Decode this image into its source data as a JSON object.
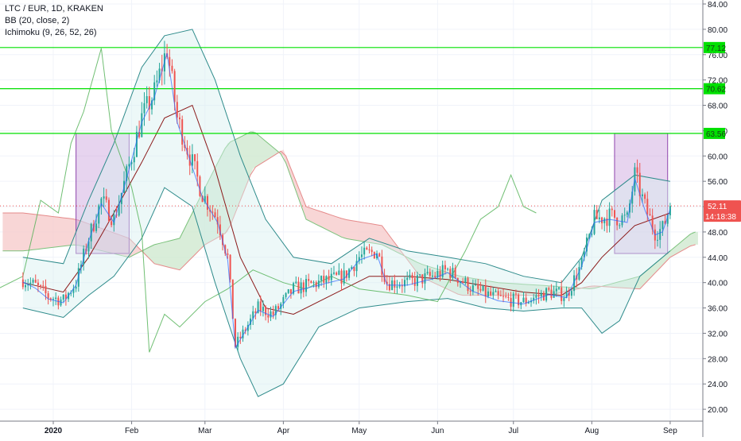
{
  "legend": {
    "symbol": "LTC / EUR, 1D, KRAKEN",
    "bb": "BB (20, close, 2)",
    "ichimoku": "Ichimoku (9, 26, 52, 26)"
  },
  "colors": {
    "up": "#26a69a",
    "down": "#ef5350",
    "level_line": "#00e000",
    "level_label_bg": "#00e000",
    "current_bg": "#ef5350",
    "bb_band": "#2e8b8b",
    "bb_mid": "#8b1a1a",
    "box_fill": "#c9a0dc",
    "box_stroke": "#8e44ad",
    "cloud_bull": "#cfe9cf",
    "cloud_bear": "#f6cccc",
    "lagging": "#4caf50",
    "axis_text": "#131722",
    "grid": "#f0f3fa"
  },
  "chart_data": {
    "type": "candlestick",
    "x_labels": [
      "2020",
      "Feb",
      "Mar",
      "Apr",
      "May",
      "Jun",
      "Jul",
      "Aug",
      "Sep"
    ],
    "y_ticks": [
      "84.00",
      "80.00",
      "76.00",
      "72.00",
      "68.00",
      "64.00",
      "60.00",
      "56.00",
      "52.00",
      "48.00",
      "44.00",
      "40.00",
      "36.00",
      "32.00",
      "28.00",
      "24.00",
      "20.00"
    ],
    "ylim": [
      18.5,
      85.5
    ],
    "levels": [
      {
        "value": 77.12,
        "label": "77.12"
      },
      {
        "value": 70.62,
        "label": "70.62"
      },
      {
        "value": 63.56,
        "label": "63.56"
      }
    ],
    "current_price": {
      "value": 52.11,
      "label": "52.11",
      "countdown": "14:18:38"
    },
    "boxes": [
      {
        "from": "2020-01-10",
        "to": "2020-01-31",
        "high": 63.56,
        "low": 44.6
      },
      {
        "from": "2020-08-10",
        "to": "2020-08-31",
        "high": 63.56,
        "low": 44.6
      }
    ],
    "close_path": [
      [
        "2019-12-20",
        40.5
      ],
      [
        "2019-12-25",
        39.5
      ],
      [
        "2019-12-30",
        37.8
      ],
      [
        "2020-01-05",
        37.2
      ],
      [
        "2020-01-10",
        40.0
      ],
      [
        "2020-01-15",
        47.0
      ],
      [
        "2020-01-20",
        53.0
      ],
      [
        "2020-01-25",
        50.0
      ],
      [
        "2020-01-30",
        57.0
      ],
      [
        "2020-02-05",
        66.0
      ],
      [
        "2020-02-10",
        70.0
      ],
      [
        "2020-02-15",
        77.0
      ],
      [
        "2020-02-19",
        66.0
      ],
      [
        "2020-02-24",
        60.0
      ],
      [
        "2020-02-29",
        54.0
      ],
      [
        "2020-03-06",
        50.0
      ],
      [
        "2020-03-10",
        44.0
      ],
      [
        "2020-03-13",
        30.0
      ],
      [
        "2020-03-16",
        32.0
      ],
      [
        "2020-03-22",
        36.0
      ],
      [
        "2020-03-28",
        35.0
      ],
      [
        "2020-04-05",
        39.0
      ],
      [
        "2020-04-15",
        40.0
      ],
      [
        "2020-04-25",
        41.0
      ],
      [
        "2020-05-01",
        44.0
      ],
      [
        "2020-05-08",
        45.0
      ],
      [
        "2020-05-12",
        40.0
      ],
      [
        "2020-05-20",
        40.0
      ],
      [
        "2020-05-30",
        41.0
      ],
      [
        "2020-06-05",
        42.0
      ],
      [
        "2020-06-15",
        39.0
      ],
      [
        "2020-06-25",
        37.5
      ],
      [
        "2020-07-05",
        37.0
      ],
      [
        "2020-07-15",
        38.5
      ],
      [
        "2020-07-22",
        38.0
      ],
      [
        "2020-07-28",
        43.0
      ],
      [
        "2020-08-02",
        50.0
      ],
      [
        "2020-08-08",
        50.5
      ],
      [
        "2020-08-15",
        50.0
      ],
      [
        "2020-08-18",
        57.0
      ],
      [
        "2020-08-22",
        52.0
      ],
      [
        "2020-08-26",
        48.0
      ],
      [
        "2020-08-29",
        48.5
      ],
      [
        "2020-09-01",
        52.11
      ]
    ],
    "bb_upper": [
      [
        "2019-12-20",
        44
      ],
      [
        "2020-01-05",
        43
      ],
      [
        "2020-01-15",
        53
      ],
      [
        "2020-01-25",
        62
      ],
      [
        "2020-02-05",
        74
      ],
      [
        "2020-02-14",
        79
      ],
      [
        "2020-02-25",
        80
      ],
      [
        "2020-03-05",
        72
      ],
      [
        "2020-03-15",
        60
      ],
      [
        "2020-03-25",
        50
      ],
      [
        "2020-04-05",
        44
      ],
      [
        "2020-04-20",
        43
      ],
      [
        "2020-05-05",
        47
      ],
      [
        "2020-05-20",
        45
      ],
      [
        "2020-06-05",
        44
      ],
      [
        "2020-06-20",
        43
      ],
      [
        "2020-07-05",
        41
      ],
      [
        "2020-07-20",
        40
      ],
      [
        "2020-07-28",
        44
      ],
      [
        "2020-08-05",
        53
      ],
      [
        "2020-08-18",
        57
      ],
      [
        "2020-09-01",
        56
      ]
    ],
    "bb_lower": [
      [
        "2019-12-20",
        36
      ],
      [
        "2020-01-05",
        34.5
      ],
      [
        "2020-01-15",
        38
      ],
      [
        "2020-01-25",
        41
      ],
      [
        "2020-02-05",
        47
      ],
      [
        "2020-02-14",
        55
      ],
      [
        "2020-02-25",
        52
      ],
      [
        "2020-03-05",
        40
      ],
      [
        "2020-03-15",
        28
      ],
      [
        "2020-03-22",
        22
      ],
      [
        "2020-04-01",
        24
      ],
      [
        "2020-04-15",
        33
      ],
      [
        "2020-05-01",
        36
      ],
      [
        "2020-05-20",
        37
      ],
      [
        "2020-06-05",
        37.5
      ],
      [
        "2020-06-20",
        36
      ],
      [
        "2020-07-05",
        35.5
      ],
      [
        "2020-07-20",
        36
      ],
      [
        "2020-07-28",
        36
      ],
      [
        "2020-08-05",
        32
      ],
      [
        "2020-08-12",
        34
      ],
      [
        "2020-08-20",
        41
      ],
      [
        "2020-09-01",
        45
      ]
    ],
    "bb_mid": [
      [
        "2019-12-20",
        40
      ],
      [
        "2020-01-05",
        38.5
      ],
      [
        "2020-01-15",
        44
      ],
      [
        "2020-01-25",
        51
      ],
      [
        "2020-02-05",
        59
      ],
      [
        "2020-02-14",
        66
      ],
      [
        "2020-02-25",
        68
      ],
      [
        "2020-03-05",
        58
      ],
      [
        "2020-03-15",
        44
      ],
      [
        "2020-03-25",
        36
      ],
      [
        "2020-04-05",
        35
      ],
      [
        "2020-04-20",
        38
      ],
      [
        "2020-05-05",
        41
      ],
      [
        "2020-05-20",
        41
      ],
      [
        "2020-06-05",
        40.5
      ],
      [
        "2020-06-20",
        39.5
      ],
      [
        "2020-07-05",
        38.5
      ],
      [
        "2020-07-20",
        38
      ],
      [
        "2020-07-28",
        40
      ],
      [
        "2020-08-05",
        44
      ],
      [
        "2020-08-18",
        49
      ],
      [
        "2020-09-01",
        51
      ]
    ],
    "lagging_span": [
      [
        "2019-12-10",
        39
      ],
      [
        "2019-12-20",
        41
      ],
      [
        "2019-12-27",
        53
      ],
      [
        "2020-01-03",
        51
      ],
      [
        "2020-01-08",
        62
      ],
      [
        "2020-01-13",
        67
      ],
      [
        "2020-01-20",
        77
      ],
      [
        "2020-01-24",
        64
      ],
      [
        "2020-02-01",
        55
      ],
      [
        "2020-02-05",
        48
      ],
      [
        "2020-02-08",
        29
      ],
      [
        "2020-02-14",
        35
      ],
      [
        "2020-02-20",
        33
      ],
      [
        "2020-03-01",
        37
      ],
      [
        "2020-03-10",
        39
      ],
      [
        "2020-03-20",
        42
      ],
      [
        "2020-04-01",
        40
      ],
      [
        "2020-04-10",
        39
      ],
      [
        "2020-04-20",
        41
      ],
      [
        "2020-05-01",
        39
      ],
      [
        "2020-05-20",
        38
      ],
      [
        "2020-06-01",
        37
      ],
      [
        "2020-06-12",
        45
      ],
      [
        "2020-06-18",
        50
      ],
      [
        "2020-06-25",
        52
      ],
      [
        "2020-06-30",
        57
      ],
      [
        "2020-07-05",
        52
      ],
      [
        "2020-07-10",
        51
      ]
    ]
  }
}
